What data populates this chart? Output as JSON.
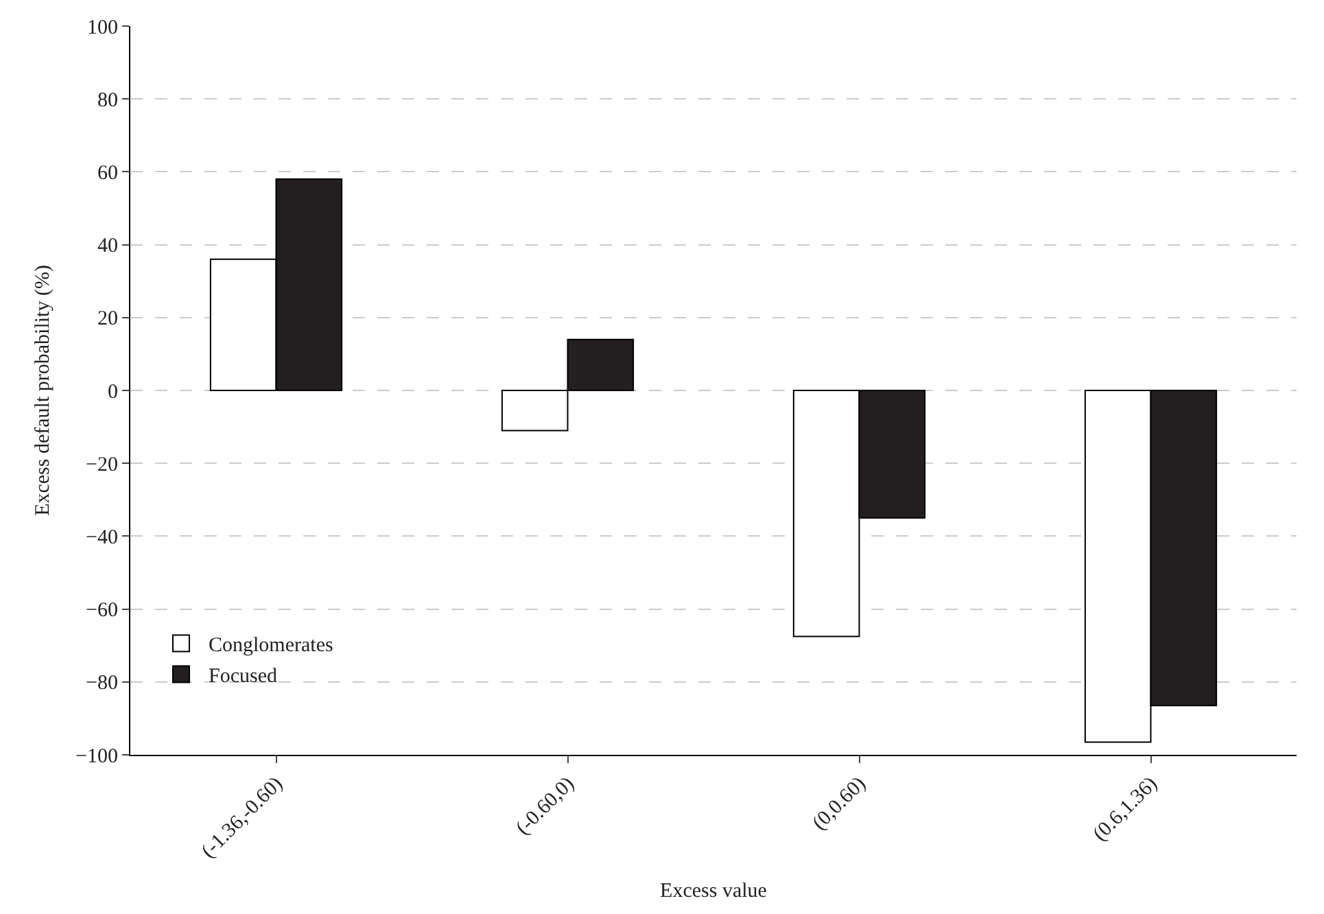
{
  "chart_data": {
    "type": "bar",
    "xlabel": "Excess value",
    "ylabel": "Excess default probability (%)",
    "categories": [
      "(-1.36,-0.60)",
      "(-0.60,0)",
      "(0,0.60)",
      "(0.6,1.36)"
    ],
    "series": [
      {
        "name": "Conglomerates",
        "color": "#ffffff",
        "values": [
          36,
          -11,
          -67.5,
          -96.5
        ]
      },
      {
        "name": "Focused",
        "color": "#231f20",
        "values": [
          58,
          14,
          -35,
          -86.5
        ]
      }
    ],
    "ylim": [
      -100,
      100
    ],
    "yticks": [
      -100,
      -80,
      -60,
      -40,
      -20,
      0,
      20,
      40,
      60,
      80,
      100
    ],
    "grid": "y",
    "legend": "bottom left"
  }
}
